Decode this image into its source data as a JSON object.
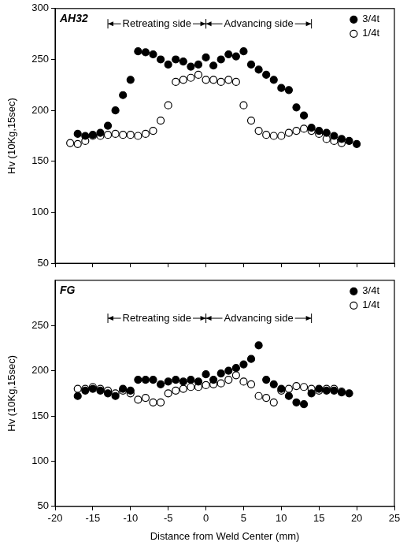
{
  "chart_data": [
    {
      "type": "scatter",
      "title": "AH32",
      "y_label": "Hv (10Kg,15sec)",
      "xlim": [
        -20,
        25
      ],
      "xticks": [
        -20,
        -15,
        -10,
        -5,
        0,
        5,
        10,
        15,
        20,
        25
      ],
      "ylim": [
        50,
        300
      ],
      "yticks": [
        50,
        100,
        150,
        200,
        250,
        300
      ],
      "grid": false,
      "legend": "upper right",
      "tick_labels": "y",
      "annotations": [
        {
          "text": "Retreating side",
          "x": [
            -13,
            0
          ],
          "y": 285
        },
        {
          "text": "Advancing side",
          "x": [
            0,
            14
          ],
          "y": 285
        }
      ],
      "series": [
        {
          "name": "3/4t",
          "color": "#000000",
          "marker": "circle",
          "x": [
            -17,
            -16,
            -15,
            -14,
            -13,
            -12,
            -11,
            -10,
            -9,
            -8,
            -7,
            -6,
            -5,
            -4,
            -3,
            -2,
            -1,
            0,
            1,
            2,
            3,
            4,
            5,
            6,
            7,
            8,
            9,
            10,
            11,
            12,
            13,
            14,
            15,
            16,
            17,
            18,
            19,
            20
          ],
          "values": [
            177,
            175,
            176,
            178,
            185,
            200,
            215,
            230,
            258,
            257,
            255,
            250,
            245,
            250,
            248,
            243,
            245,
            252,
            244,
            250,
            255,
            253,
            258,
            245,
            240,
            235,
            230,
            222,
            220,
            203,
            195,
            183,
            180,
            178,
            175,
            172,
            170,
            167
          ]
        },
        {
          "name": "1/4t",
          "color": "#000000",
          "marker": "circle-open",
          "x": [
            -18,
            -17,
            -16,
            -15,
            -14,
            -13,
            -12,
            -11,
            -10,
            -9,
            -8,
            -7,
            -6,
            -5,
            -4,
            -3,
            -2,
            -1,
            0,
            1,
            2,
            3,
            4,
            5,
            6,
            7,
            8,
            9,
            10,
            11,
            12,
            13,
            14,
            15,
            16,
            17,
            18
          ],
          "values": [
            168,
            167,
            170,
            175,
            175,
            176,
            177,
            176,
            176,
            175,
            177,
            180,
            190,
            205,
            228,
            230,
            232,
            235,
            230,
            230,
            228,
            230,
            228,
            205,
            190,
            180,
            176,
            175,
            175,
            178,
            180,
            182,
            180,
            177,
            172,
            170,
            168
          ]
        }
      ]
    },
    {
      "type": "scatter",
      "title": "FG",
      "x_label": "Distance from Weld Center (mm)",
      "y_label": "Hv (10Kg,15sec)",
      "xlim": [
        -20,
        25
      ],
      "xticks": [
        -20,
        -15,
        -10,
        -5,
        0,
        5,
        10,
        15,
        20,
        25
      ],
      "ylim": [
        50,
        300
      ],
      "yticks": [
        50,
        100,
        150,
        200,
        250
      ],
      "grid": false,
      "legend": "upper right",
      "annotations": [
        {
          "text": "Retreating side",
          "x": [
            -13,
            0
          ],
          "y": 258
        },
        {
          "text": "Advancing side",
          "x": [
            0,
            14
          ],
          "y": 258
        }
      ],
      "series": [
        {
          "name": "3/4t",
          "color": "#000000",
          "marker": "circle",
          "x": [
            -17,
            -16,
            -15,
            -14,
            -13,
            -12,
            -11,
            -10,
            -9,
            -8,
            -7,
            -6,
            -5,
            -4,
            -3,
            -2,
            -1,
            0,
            1,
            2,
            3,
            4,
            5,
            6,
            7,
            8,
            9,
            10,
            11,
            12,
            13,
            14,
            15,
            16,
            17,
            18,
            19
          ],
          "values": [
            172,
            178,
            180,
            178,
            175,
            172,
            180,
            178,
            190,
            190,
            190,
            185,
            188,
            190,
            188,
            190,
            188,
            196,
            190,
            197,
            200,
            203,
            207,
            213,
            228,
            190,
            185,
            180,
            172,
            165,
            163,
            175,
            180,
            178,
            178,
            176,
            175
          ]
        },
        {
          "name": "1/4t",
          "color": "#000000",
          "marker": "circle-open",
          "x": [
            -17,
            -16,
            -15,
            -14,
            -13,
            -12,
            -11,
            -10,
            -9,
            -8,
            -7,
            -6,
            -5,
            -4,
            -3,
            -2,
            -1,
            0,
            1,
            2,
            3,
            4,
            5,
            6,
            7,
            8,
            9,
            10,
            11,
            12,
            13,
            14,
            15,
            16,
            17,
            18
          ],
          "values": [
            180,
            180,
            182,
            180,
            178,
            175,
            178,
            175,
            168,
            170,
            165,
            165,
            175,
            178,
            180,
            182,
            182,
            184,
            185,
            186,
            190,
            195,
            188,
            185,
            172,
            170,
            165,
            178,
            180,
            183,
            182,
            180,
            178,
            180,
            180,
            177
          ]
        }
      ]
    }
  ]
}
